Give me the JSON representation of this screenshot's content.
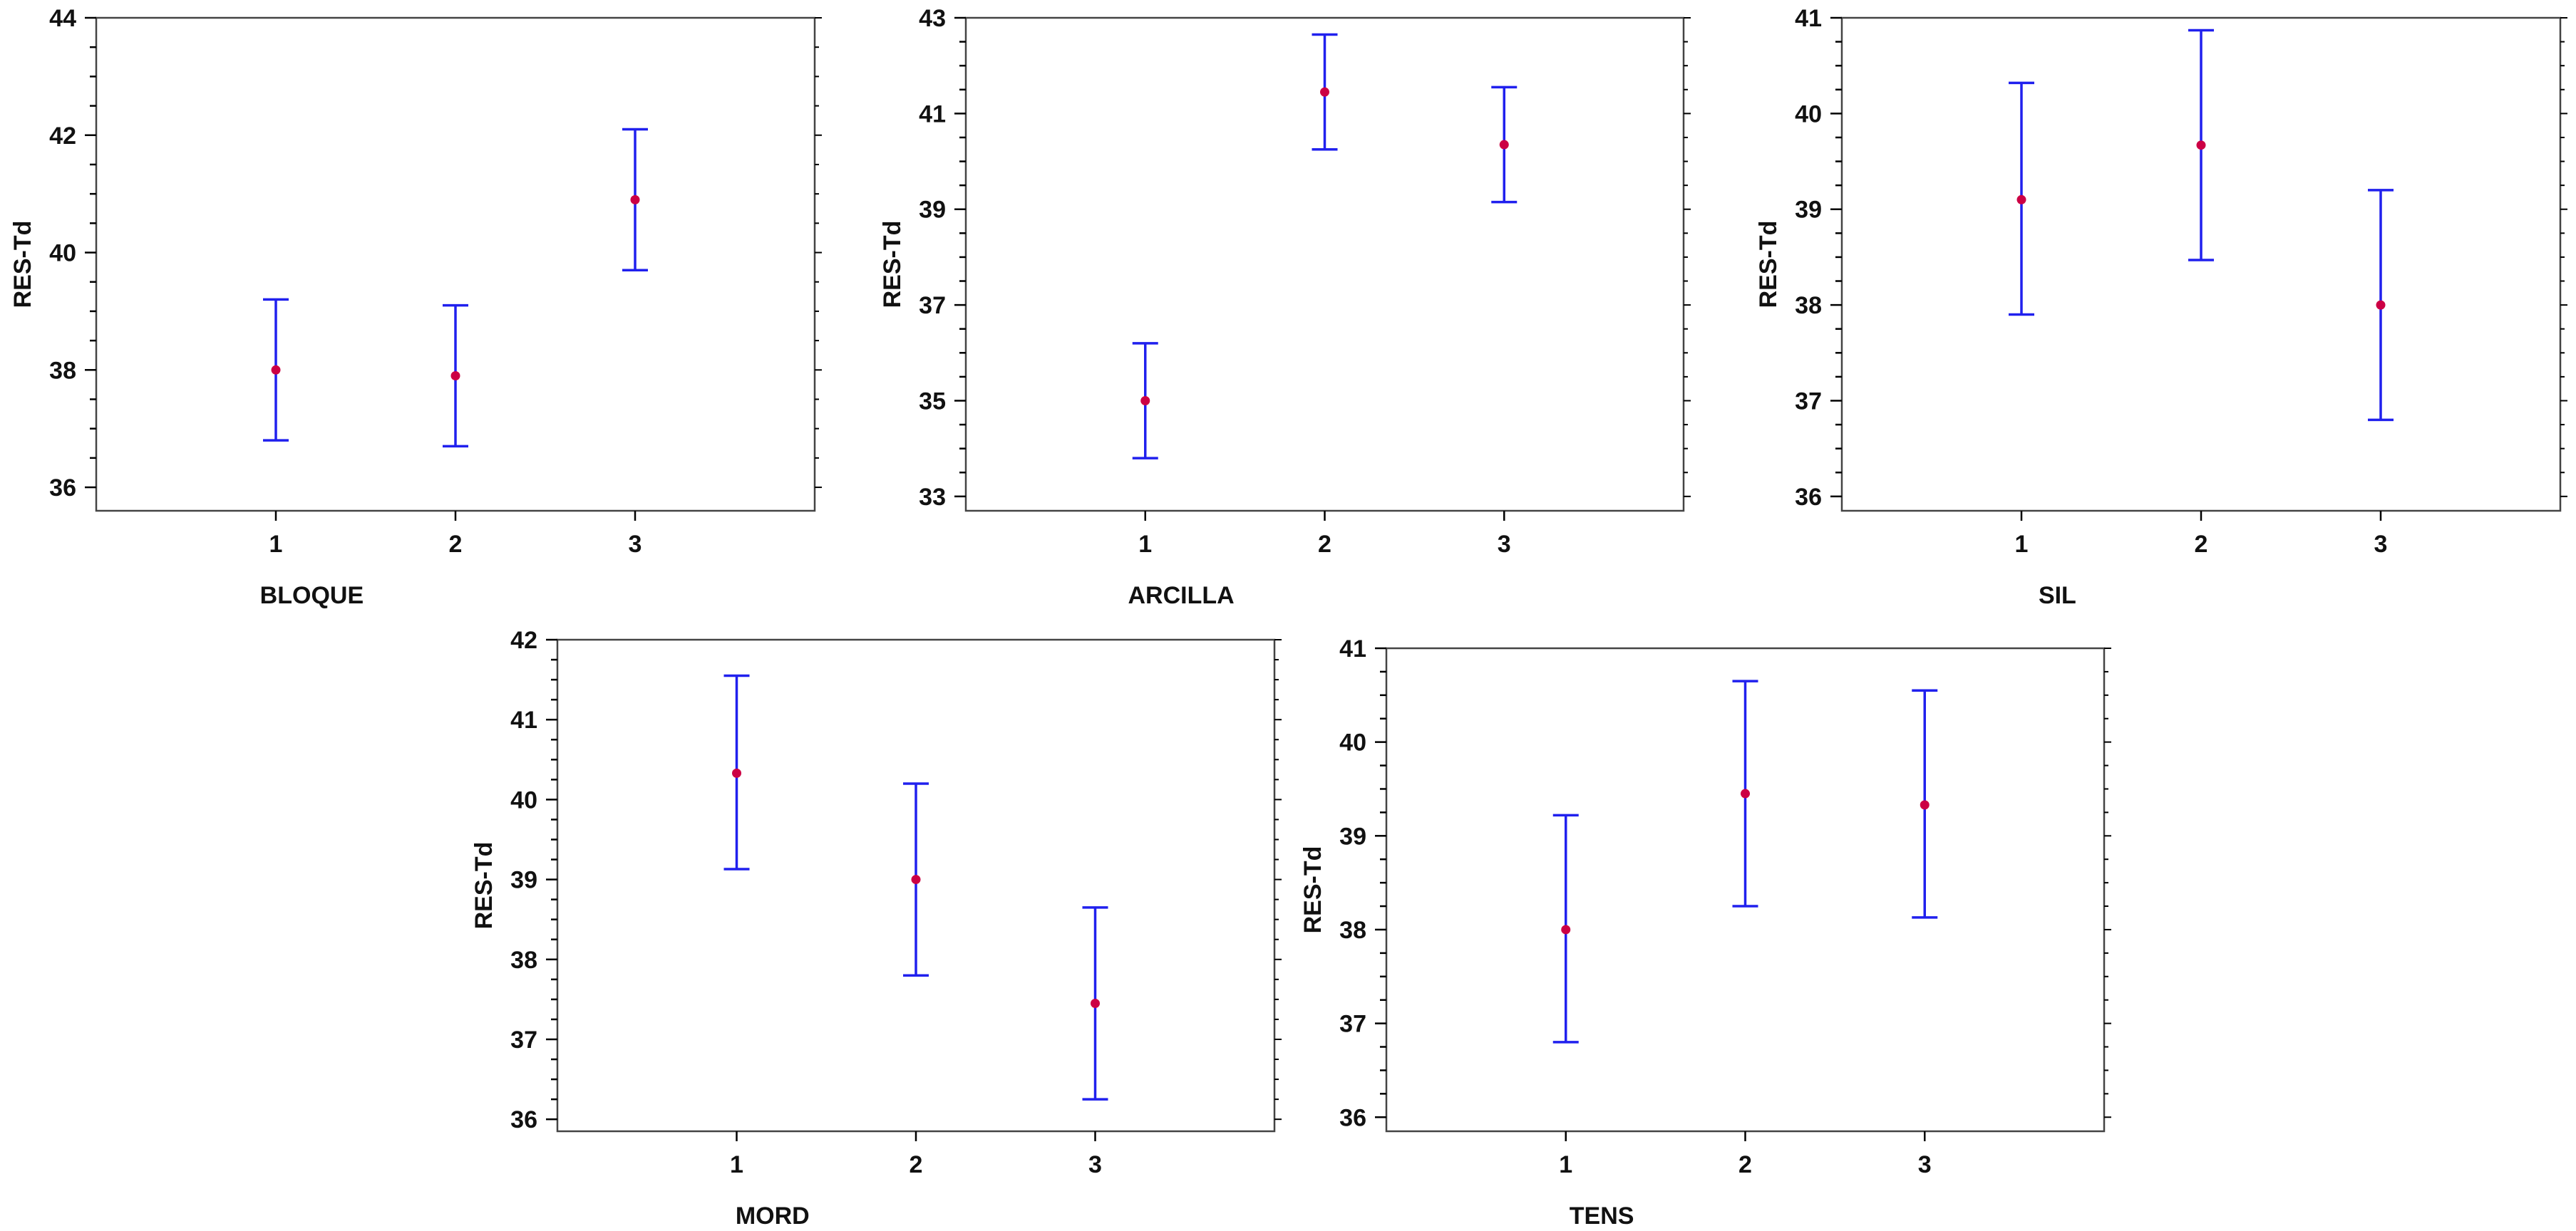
{
  "colors": {
    "error_bar": "#2020ee",
    "mean_point": "#cc0044",
    "axis": "#000000",
    "frame": "#444444",
    "background": "#ffffff"
  },
  "chart_data": [
    {
      "type": "error_bar",
      "title": "",
      "xlabel": "BLOQUE",
      "ylabel": "RES-Td",
      "categories": [
        "1",
        "2",
        "3"
      ],
      "means": [
        38.0,
        37.9,
        40.9
      ],
      "lower": [
        36.8,
        36.7,
        39.7
      ],
      "upper": [
        39.2,
        39.1,
        42.1
      ],
      "ylim": [
        35.6,
        44.0
      ],
      "yticks": [
        36,
        38,
        40,
        42,
        44
      ],
      "ytick_labels": [
        "36",
        "38",
        "40",
        "42",
        "44"
      ],
      "xlim": [
        0.0,
        4.0
      ]
    },
    {
      "type": "error_bar",
      "title": "",
      "xlabel": "ARCILLA",
      "ylabel": "RES-Td",
      "categories": [
        "1",
        "2",
        "3"
      ],
      "means": [
        35.0,
        41.45,
        40.35
      ],
      "lower": [
        33.8,
        40.25,
        39.15
      ],
      "upper": [
        36.2,
        42.65,
        41.55
      ],
      "ylim": [
        32.7,
        43.0
      ],
      "yticks": [
        33,
        35,
        37,
        39,
        41,
        43
      ],
      "ytick_labels": [
        "33",
        "35",
        "37",
        "39",
        "41",
        "43"
      ],
      "xlim": [
        0.0,
        4.0
      ]
    },
    {
      "type": "error_bar",
      "title": "",
      "xlabel": "SIL",
      "ylabel": "RES-Td",
      "categories": [
        "1",
        "2",
        "3"
      ],
      "means": [
        39.1,
        39.67,
        38.0
      ],
      "lower": [
        37.9,
        38.47,
        36.8
      ],
      "upper": [
        40.32,
        40.87,
        39.2
      ],
      "ylim": [
        35.85,
        41.0
      ],
      "yticks": [
        36,
        37,
        38,
        39,
        40,
        41
      ],
      "ytick_labels": [
        "36",
        "37",
        "38",
        "39",
        "40",
        "41"
      ],
      "xlim": [
        0.0,
        4.0
      ]
    },
    {
      "type": "error_bar",
      "title": "",
      "xlabel": "MORD",
      "ylabel": "RES-Td",
      "categories": [
        "1",
        "2",
        "3"
      ],
      "means": [
        40.33,
        39.0,
        37.45
      ],
      "lower": [
        39.13,
        37.8,
        36.25
      ],
      "upper": [
        41.55,
        40.2,
        38.65
      ],
      "ylim": [
        35.85,
        42.0
      ],
      "yticks": [
        36,
        37,
        38,
        39,
        40,
        41,
        42
      ],
      "ytick_labels": [
        "36",
        "37",
        "38",
        "39",
        "40",
        "41",
        "42"
      ],
      "xlim": [
        0.0,
        4.0
      ]
    },
    {
      "type": "error_bar",
      "title": "",
      "xlabel": "TENS",
      "ylabel": "RES-Td",
      "categories": [
        "1",
        "2",
        "3"
      ],
      "means": [
        38.0,
        39.45,
        39.33
      ],
      "lower": [
        36.8,
        38.25,
        38.13
      ],
      "upper": [
        39.22,
        40.65,
        40.55
      ],
      "ylim": [
        35.85,
        41.0
      ],
      "yticks": [
        36,
        37,
        38,
        39,
        40,
        41
      ],
      "ytick_labels": [
        "36",
        "37",
        "38",
        "39",
        "40",
        "41"
      ],
      "xlim": [
        0.0,
        4.0
      ]
    }
  ]
}
